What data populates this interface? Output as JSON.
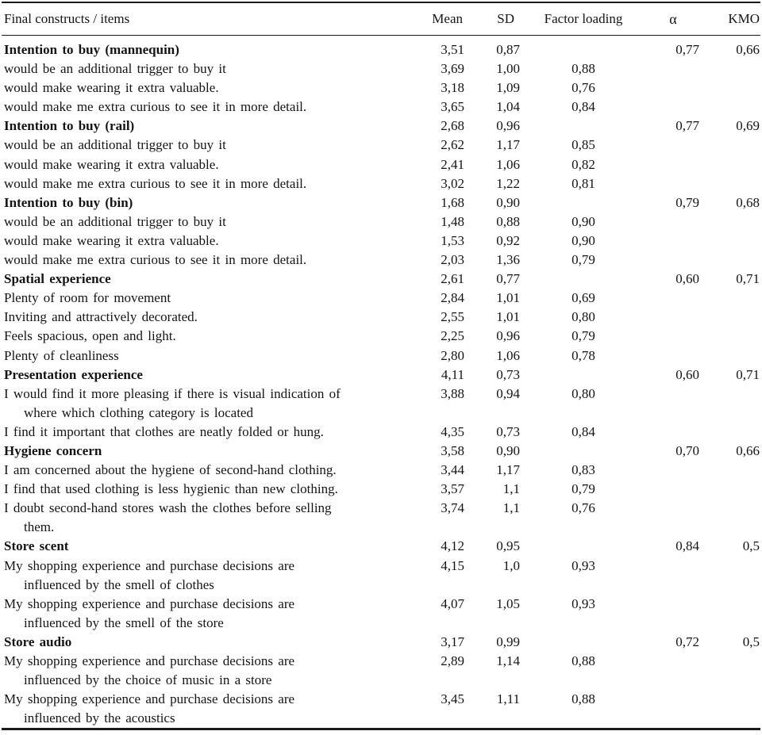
{
  "table": {
    "columns": {
      "item": "Final constructs / items",
      "mean": "Mean",
      "sd": "SD",
      "factor_loading": "Factor loading",
      "alpha": "α",
      "kmo": "KMO"
    },
    "rows": [
      {
        "bold": true,
        "item": "Intention to buy (mannequin)",
        "mean": "3,51",
        "sd": "0,87",
        "fl": "",
        "alpha": "0,77",
        "kmo": "0,66"
      },
      {
        "bold": false,
        "item": "would be an additional trigger to buy it",
        "mean": "3,69",
        "sd": "1,00",
        "fl": "0,88",
        "alpha": "",
        "kmo": ""
      },
      {
        "bold": false,
        "item": "would make wearing it extra valuable.",
        "mean": "3,18",
        "sd": "1,09",
        "fl": "0,76",
        "alpha": "",
        "kmo": ""
      },
      {
        "bold": false,
        "item": "would make me extra curious to see it in more detail.",
        "mean": "3,65",
        "sd": "1,04",
        "fl": "0,84",
        "alpha": "",
        "kmo": ""
      },
      {
        "bold": true,
        "item": "Intention to buy (rail)",
        "mean": "2,68",
        "sd": "0,96",
        "fl": "",
        "alpha": "0,77",
        "kmo": "0,69"
      },
      {
        "bold": false,
        "item": "would be an additional trigger to buy it",
        "mean": "2,62",
        "sd": "1,17",
        "fl": "0,85",
        "alpha": "",
        "kmo": ""
      },
      {
        "bold": false,
        "item": "would make wearing it extra valuable.",
        "mean": "2,41",
        "sd": "1,06",
        "fl": "0,82",
        "alpha": "",
        "kmo": ""
      },
      {
        "bold": false,
        "item": "would make me extra curious to see it in more detail.",
        "mean": "3,02",
        "sd": "1,22",
        "fl": "0,81",
        "alpha": "",
        "kmo": ""
      },
      {
        "bold": true,
        "item": "Intention to buy (bin)",
        "mean": "1,68",
        "sd": "0,90",
        "fl": "",
        "alpha": "0,79",
        "kmo": "0,68"
      },
      {
        "bold": false,
        "item": "would be an additional trigger to buy it",
        "mean": "1,48",
        "sd": "0,88",
        "fl": "0,90",
        "alpha": "",
        "kmo": ""
      },
      {
        "bold": false,
        "item": "would make wearing it extra valuable.",
        "mean": "1,53",
        "sd": "0,92",
        "fl": "0,90",
        "alpha": "",
        "kmo": ""
      },
      {
        "bold": false,
        "item": "would make me extra curious to see it in more detail.",
        "mean": "2,03",
        "sd": "1,36",
        "fl": "0,79",
        "alpha": "",
        "kmo": ""
      },
      {
        "bold": true,
        "item": "Spatial experience",
        "mean": "2,61",
        "sd": "0,77",
        "fl": "",
        "alpha": "0,60",
        "kmo": "0,71"
      },
      {
        "bold": false,
        "item": "Plenty of room for movement",
        "mean": "2,84",
        "sd": "1,01",
        "fl": "0,69",
        "alpha": "",
        "kmo": ""
      },
      {
        "bold": false,
        "item": "Inviting and attractively decorated.",
        "mean": "2,55",
        "sd": "1,01",
        "fl": "0,80",
        "alpha": "",
        "kmo": ""
      },
      {
        "bold": false,
        "item": "Feels spacious, open and light.",
        "mean": "2,25",
        "sd": "0,96",
        "fl": "0,79",
        "alpha": "",
        "kmo": ""
      },
      {
        "bold": false,
        "item": "Plenty of cleanliness",
        "mean": "2,80",
        "sd": "1,06",
        "fl": "0,78",
        "alpha": "",
        "kmo": ""
      },
      {
        "bold": true,
        "item": "Presentation experience",
        "mean": "4,11",
        "sd": "0,73",
        "fl": "",
        "alpha": "0,60",
        "kmo": "0,71"
      },
      {
        "bold": false,
        "item": "I would find it more pleasing if there is visual indication of",
        "item2": "where which clothing category is located",
        "mean": "3,88",
        "sd": "0,94",
        "fl": "0,80",
        "alpha": "",
        "kmo": ""
      },
      {
        "bold": false,
        "item": "I find it important that clothes are neatly folded or hung.",
        "mean": "4,35",
        "sd": "0,73",
        "fl": "0,84",
        "alpha": "",
        "kmo": ""
      },
      {
        "bold": true,
        "item": "Hygiene concern",
        "mean": "3,58",
        "sd": "0,90",
        "fl": "",
        "alpha": "0,70",
        "kmo": "0,66"
      },
      {
        "bold": false,
        "item": "I am concerned about the hygiene of second-hand clothing.",
        "mean": "3,44",
        "sd": "1,17",
        "fl": "0,83",
        "alpha": "",
        "kmo": ""
      },
      {
        "bold": false,
        "item": "I find that used clothing is less hygienic than new clothing.",
        "mean": "3,57",
        "sd": "1,1",
        "fl": "0,79",
        "alpha": "",
        "kmo": ""
      },
      {
        "bold": false,
        "item": "I doubt second-hand stores wash the clothes before selling",
        "item2": "them.",
        "mean": "3,74",
        "sd": "1,1",
        "fl": "0,76",
        "alpha": "",
        "kmo": ""
      },
      {
        "bold": true,
        "item": "Store scent",
        "mean": "4,12",
        "sd": "0,95",
        "fl": "",
        "alpha": "0,84",
        "kmo": "0,5"
      },
      {
        "bold": false,
        "item": "My shopping experience and purchase decisions are",
        "item2": "influenced by the smell of clothes",
        "mean": "4,15",
        "sd": "1,0",
        "fl": "0,93",
        "alpha": "",
        "kmo": ""
      },
      {
        "bold": false,
        "item": "My shopping experience and purchase decisions are",
        "item2": "influenced by the smell of the store",
        "mean": "4,07",
        "sd": "1,05",
        "fl": "0,93",
        "alpha": "",
        "kmo": ""
      },
      {
        "bold": true,
        "item": "Store audio",
        "mean": "3,17",
        "sd": "0,99",
        "fl": "",
        "alpha": "0,72",
        "kmo": "0,5"
      },
      {
        "bold": false,
        "item": "My shopping experience and purchase decisions are",
        "item2": "influenced by the choice of music in a store",
        "mean": "2,89",
        "sd": "1,14",
        "fl": "0,88",
        "alpha": "",
        "kmo": ""
      },
      {
        "bold": false,
        "item": "My shopping experience and purchase decisions are",
        "item2": "influenced by the acoustics",
        "mean": "3,45",
        "sd": "1,11",
        "fl": "0,88",
        "alpha": "",
        "kmo": ""
      }
    ]
  }
}
